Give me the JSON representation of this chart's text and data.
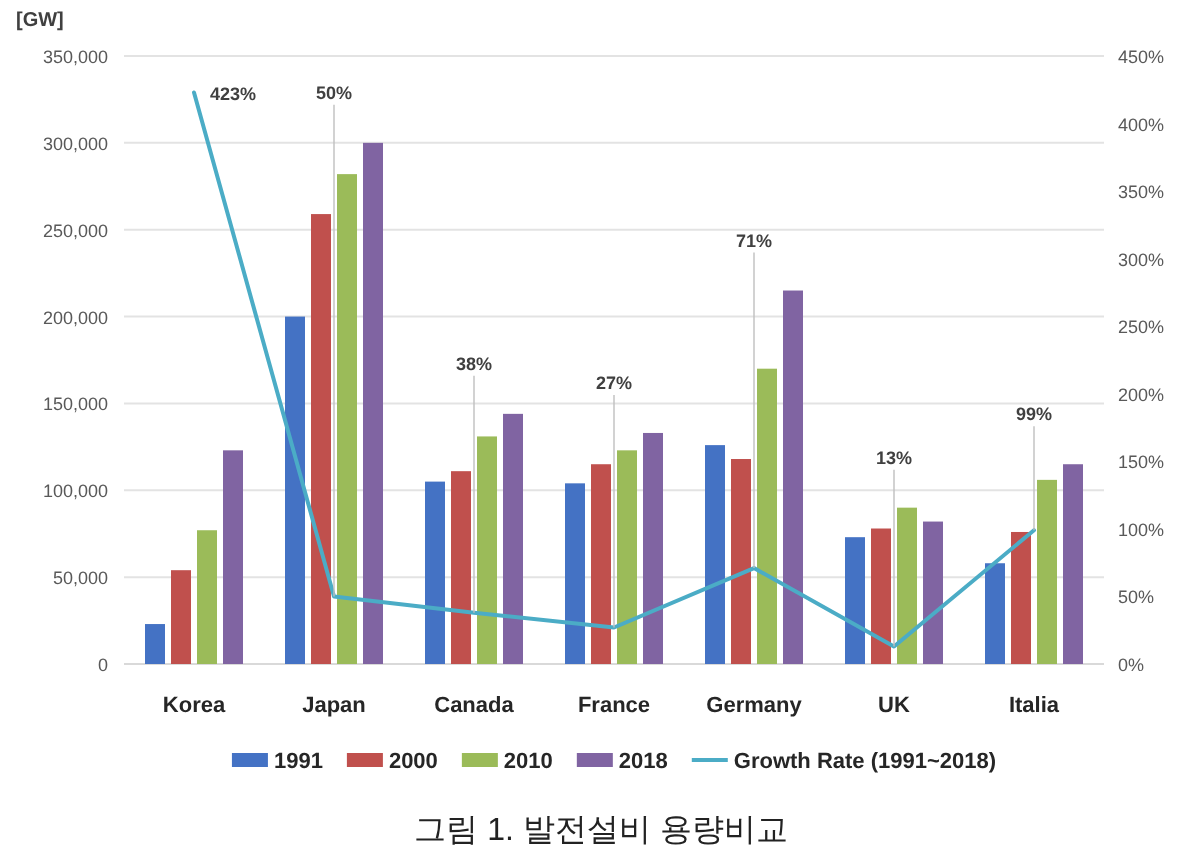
{
  "chart_data": {
    "type": "bar",
    "ylabel": "[GW]",
    "categories": [
      "Korea",
      "Japan",
      "Canada",
      "France",
      "Germany",
      "UK",
      "Italia"
    ],
    "series": [
      {
        "name": "1991",
        "color": "#4472c4",
        "values": [
          23000,
          200000,
          105000,
          104000,
          126000,
          73000,
          58000
        ]
      },
      {
        "name": "2000",
        "color": "#c0504d",
        "values": [
          54000,
          259000,
          111000,
          115000,
          118000,
          78000,
          76000
        ]
      },
      {
        "name": "2010",
        "color": "#9bbb59",
        "values": [
          77000,
          282000,
          131000,
          123000,
          170000,
          90000,
          106000
        ]
      },
      {
        "name": "2018",
        "color": "#8064a2",
        "values": [
          123000,
          300000,
          144000,
          133000,
          215000,
          82000,
          115000
        ]
      },
      {
        "name": "Growth Rate (1991~2018)",
        "type": "line",
        "axis": "y2",
        "color": "#4bacc6",
        "values": [
          423,
          50,
          38,
          27,
          71,
          13,
          99
        ],
        "value_labels": [
          "423%",
          "50%",
          "38%",
          "27%",
          "71%",
          "13%",
          "99%"
        ]
      }
    ],
    "ylim": [
      0,
      350000
    ],
    "yticks": [
      {
        "value": 0,
        "label": "0"
      },
      {
        "value": 50000,
        "label": "50,000"
      },
      {
        "value": 100000,
        "label": "100,000"
      },
      {
        "value": 150000,
        "label": "150,000"
      },
      {
        "value": 200000,
        "label": "200,000"
      },
      {
        "value": 250000,
        "label": "250,000"
      },
      {
        "value": 300000,
        "label": "300,000"
      },
      {
        "value": 350000,
        "label": "350,000"
      }
    ],
    "y2lim": [
      0,
      450
    ],
    "y2ticks": [
      {
        "value": 0,
        "label": "0%"
      },
      {
        "value": 50,
        "label": "50%"
      },
      {
        "value": 100,
        "label": "100%"
      },
      {
        "value": 150,
        "label": "150%"
      },
      {
        "value": 200,
        "label": "200%"
      },
      {
        "value": 250,
        "label": "250%"
      },
      {
        "value": 300,
        "label": "300%"
      },
      {
        "value": 350,
        "label": "350%"
      },
      {
        "value": 400,
        "label": "400%"
      },
      {
        "value": 450,
        "label": "450%"
      }
    ],
    "grid": "y",
    "legend": "bottom",
    "annotations": [
      "그림 1. 발전설비 용량비교"
    ]
  }
}
